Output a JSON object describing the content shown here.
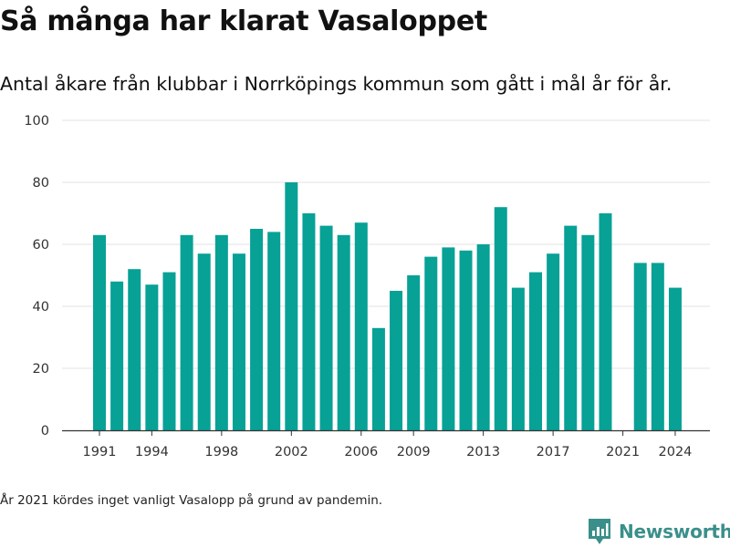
{
  "title": "Så många har klarat Vasaloppet",
  "subtitle": "Antal åkare från klubbar i Norrköpings kommun som gått i mål år för år.",
  "note": "År 2021 kördes inget vanligt Vasalopp på grund av pandemin.",
  "brand": {
    "name": "Newsworthy",
    "icon": "newsworthy-logo-icon"
  },
  "colors": {
    "bar": "#07a196",
    "grid": "#e3e3e3",
    "axis": "#333333",
    "brand": "#3a8f8a"
  },
  "chart_data": {
    "type": "bar",
    "categories": [
      1991,
      1992,
      1993,
      1994,
      1995,
      1996,
      1997,
      1998,
      1999,
      2000,
      2001,
      2002,
      2003,
      2004,
      2005,
      2006,
      2007,
      2008,
      2009,
      2010,
      2011,
      2012,
      2013,
      2014,
      2015,
      2016,
      2017,
      2018,
      2019,
      2020,
      2021,
      2022,
      2023,
      2024
    ],
    "values": [
      63,
      48,
      52,
      47,
      51,
      63,
      57,
      63,
      57,
      65,
      64,
      80,
      70,
      66,
      63,
      67,
      33,
      45,
      50,
      56,
      59,
      58,
      60,
      72,
      46,
      51,
      57,
      66,
      63,
      70,
      null,
      54,
      54,
      46
    ],
    "x_tick_labels": [
      "1991",
      "1994",
      "1998",
      "2002",
      "2006",
      "2009",
      "2013",
      "2017",
      "2021",
      "2024"
    ],
    "y_ticks": [
      0,
      20,
      40,
      60,
      80,
      100
    ],
    "ylim": [
      0,
      100
    ],
    "grid": true,
    "legend": "none"
  }
}
